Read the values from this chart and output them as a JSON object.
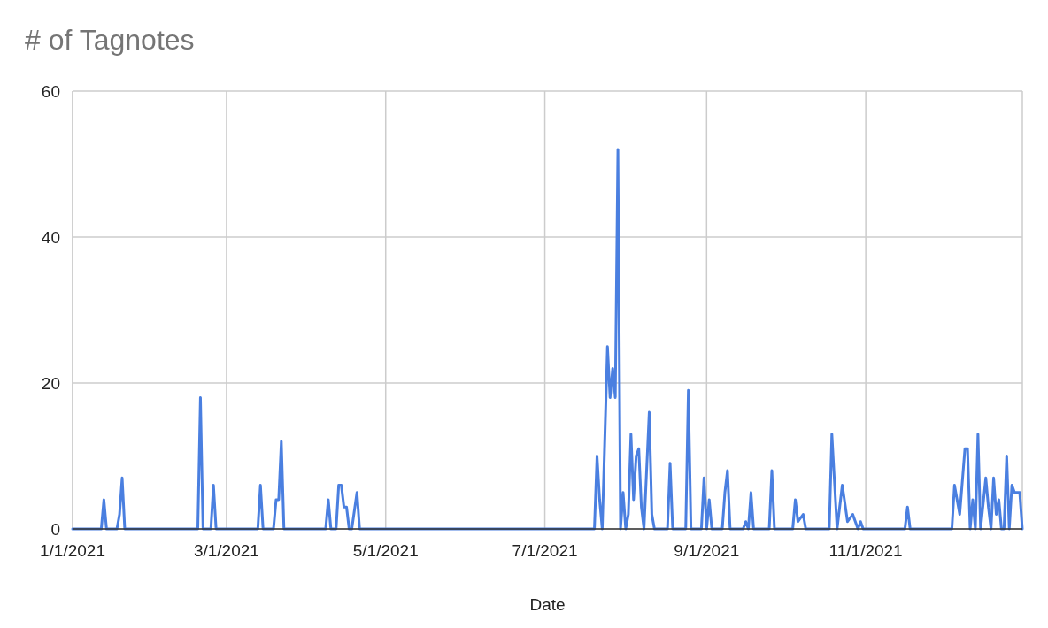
{
  "chart_data": {
    "type": "line",
    "title": "# of Tagnotes",
    "xlabel": "Date",
    "x": [
      "2021-01-01",
      "2021-01-12",
      "2021-01-13",
      "2021-01-14",
      "2021-01-18",
      "2021-01-19",
      "2021-01-20",
      "2021-01-21",
      "2021-02-18",
      "2021-02-19",
      "2021-02-20",
      "2021-02-23",
      "2021-02-24",
      "2021-02-25",
      "2021-03-13",
      "2021-03-14",
      "2021-03-15",
      "2021-03-19",
      "2021-03-20",
      "2021-03-21",
      "2021-03-22",
      "2021-03-23",
      "2021-04-08",
      "2021-04-09",
      "2021-04-10",
      "2021-04-12",
      "2021-04-13",
      "2021-04-14",
      "2021-04-15",
      "2021-04-16",
      "2021-04-17",
      "2021-04-18",
      "2021-04-20",
      "2021-04-21",
      "2021-07-20",
      "2021-07-21",
      "2021-07-22",
      "2021-07-23",
      "2021-07-25",
      "2021-07-26",
      "2021-07-27",
      "2021-07-28",
      "2021-07-29",
      "2021-07-30",
      "2021-07-31",
      "2021-08-01",
      "2021-08-02",
      "2021-08-03",
      "2021-08-04",
      "2021-08-05",
      "2021-08-06",
      "2021-08-07",
      "2021-08-08",
      "2021-08-10",
      "2021-08-11",
      "2021-08-12",
      "2021-08-17",
      "2021-08-18",
      "2021-08-19",
      "2021-08-24",
      "2021-08-25",
      "2021-08-26",
      "2021-08-30",
      "2021-08-31",
      "2021-09-01",
      "2021-09-02",
      "2021-09-03",
      "2021-09-07",
      "2021-09-08",
      "2021-09-09",
      "2021-09-10",
      "2021-09-15",
      "2021-09-16",
      "2021-09-17",
      "2021-09-18",
      "2021-09-19",
      "2021-09-25",
      "2021-09-26",
      "2021-09-27",
      "2021-10-04",
      "2021-10-05",
      "2021-10-06",
      "2021-10-08",
      "2021-10-09",
      "2021-10-18",
      "2021-10-19",
      "2021-10-21",
      "2021-10-23",
      "2021-10-25",
      "2021-10-27",
      "2021-10-29",
      "2021-10-30",
      "2021-10-31",
      "2021-11-16",
      "2021-11-17",
      "2021-11-18",
      "2021-12-04",
      "2021-12-05",
      "2021-12-07",
      "2021-12-09",
      "2021-12-10",
      "2021-12-11",
      "2021-12-12",
      "2021-12-13",
      "2021-12-14",
      "2021-12-15",
      "2021-12-17",
      "2021-12-18",
      "2021-12-19",
      "2021-12-20",
      "2021-12-21",
      "2021-12-22",
      "2021-12-23",
      "2021-12-24",
      "2021-12-25",
      "2021-12-26",
      "2021-12-27",
      "2021-12-28",
      "2021-12-29",
      "2021-12-30",
      "2021-12-31"
    ],
    "series": [
      {
        "color": "#4a7fe0",
        "values": [
          0,
          0,
          4,
          0,
          0,
          2,
          7,
          0,
          0,
          18,
          0,
          0,
          6,
          0,
          0,
          6,
          0,
          0,
          4,
          4,
          12,
          0,
          0,
          4,
          0,
          0,
          6,
          6,
          3,
          3,
          0,
          0,
          5,
          0,
          0,
          10,
          4,
          0,
          25,
          18,
          22,
          18,
          52,
          0,
          5,
          0,
          2,
          13,
          4,
          10,
          11,
          3,
          0,
          16,
          2,
          0,
          0,
          9,
          0,
          0,
          19,
          0,
          0,
          7,
          0,
          4,
          0,
          0,
          5,
          8,
          0,
          0,
          1,
          0,
          5,
          0,
          0,
          8,
          0,
          0,
          4,
          1,
          2,
          0,
          0,
          13,
          0,
          6,
          1,
          2,
          0,
          1,
          0,
          0,
          3,
          0,
          0,
          6,
          2,
          11,
          11,
          0,
          4,
          0,
          13,
          0,
          7,
          3,
          0,
          7,
          2,
          4,
          0,
          0,
          10,
          0,
          6,
          5,
          5,
          5,
          0
        ]
      }
    ],
    "xlim": [
      "2021-01-01",
      "2021-12-31"
    ],
    "xticks": [
      {
        "value": "2021-01-01",
        "label": "1/1/2021"
      },
      {
        "value": "2021-03-01",
        "label": "3/1/2021"
      },
      {
        "value": "2021-05-01",
        "label": "5/1/2021"
      },
      {
        "value": "2021-07-01",
        "label": "7/1/2021"
      },
      {
        "value": "2021-09-01",
        "label": "9/1/2021"
      },
      {
        "value": "2021-11-01",
        "label": "11/1/2021"
      }
    ],
    "ylim": [
      0,
      60
    ],
    "yticks": [
      0,
      20,
      40,
      60
    ],
    "grid": true
  }
}
